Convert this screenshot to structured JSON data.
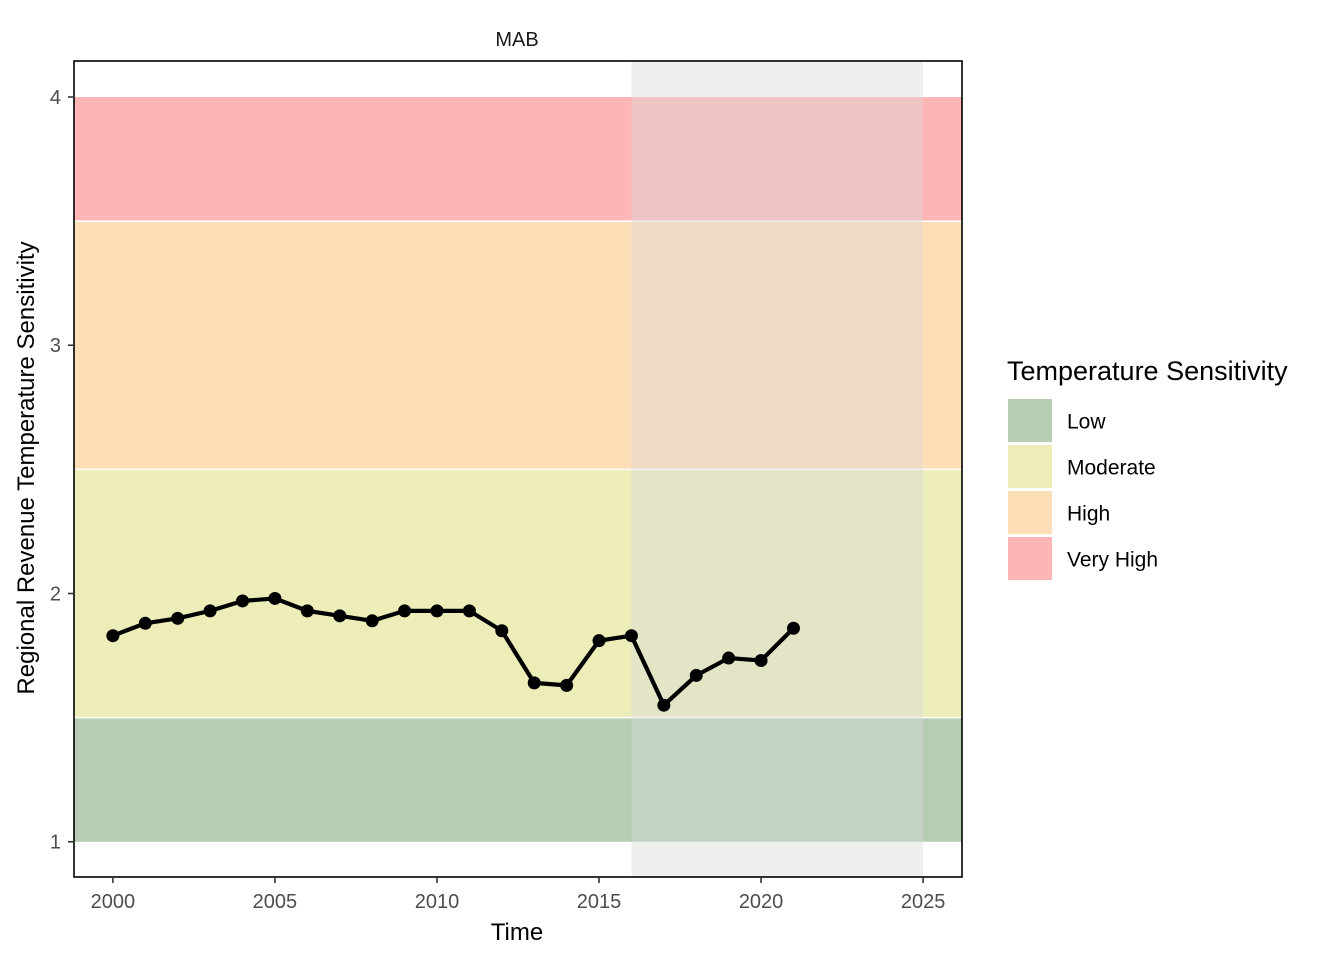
{
  "chart_data": {
    "type": "line",
    "facet_label": "MAB",
    "xlabel": "Time",
    "ylabel": "Regional Revenue Temperature Sensitivity",
    "xlim": [
      1998.8,
      2026.2
    ],
    "ylim": [
      0.858,
      4.145
    ],
    "x_ticks": [
      2000,
      2005,
      2010,
      2015,
      2020,
      2025
    ],
    "y_ticks": [
      1,
      2,
      3,
      4
    ],
    "x_tick_labels": [
      "2000",
      "2005",
      "2010",
      "2015",
      "2020",
      "2025"
    ],
    "y_tick_labels": [
      "1",
      "2",
      "3",
      "4"
    ],
    "grid": false,
    "legend_position": "right",
    "highlight_region": {
      "x_from": 2016,
      "x_to": 2025,
      "color": "#d9d9d9"
    },
    "bands": [
      {
        "name": "Low",
        "y_from": 1.0,
        "y_to": 1.5,
        "color": "#b6cdb3"
      },
      {
        "name": "Moderate",
        "y_from": 1.5,
        "y_to": 2.5,
        "color": "#ecedb8"
      },
      {
        "name": "High",
        "y_from": 2.5,
        "y_to": 3.5,
        "color": "#fddfb7"
      },
      {
        "name": "Very High",
        "y_from": 3.5,
        "y_to": 4.0,
        "color": "#feb5b6"
      }
    ],
    "legend": {
      "title": "Temperature Sensitivity",
      "entries": [
        "Low",
        "Moderate",
        "High",
        "Very High"
      ]
    },
    "series": [
      {
        "x": [
          2000,
          2001,
          2002,
          2003,
          2004,
          2005,
          2006,
          2007,
          2008,
          2009,
          2010,
          2011,
          2012,
          2013,
          2014,
          2015,
          2016,
          2017,
          2018,
          2019,
          2020,
          2021
        ],
        "y": [
          1.83,
          1.88,
          1.9,
          1.93,
          1.97,
          1.98,
          1.93,
          1.91,
          1.89,
          1.93,
          1.93,
          1.93,
          1.85,
          1.64,
          1.63,
          1.81,
          1.83,
          1.55,
          1.67,
          1.74,
          1.73,
          1.86
        ],
        "color": "#000000"
      }
    ]
  }
}
